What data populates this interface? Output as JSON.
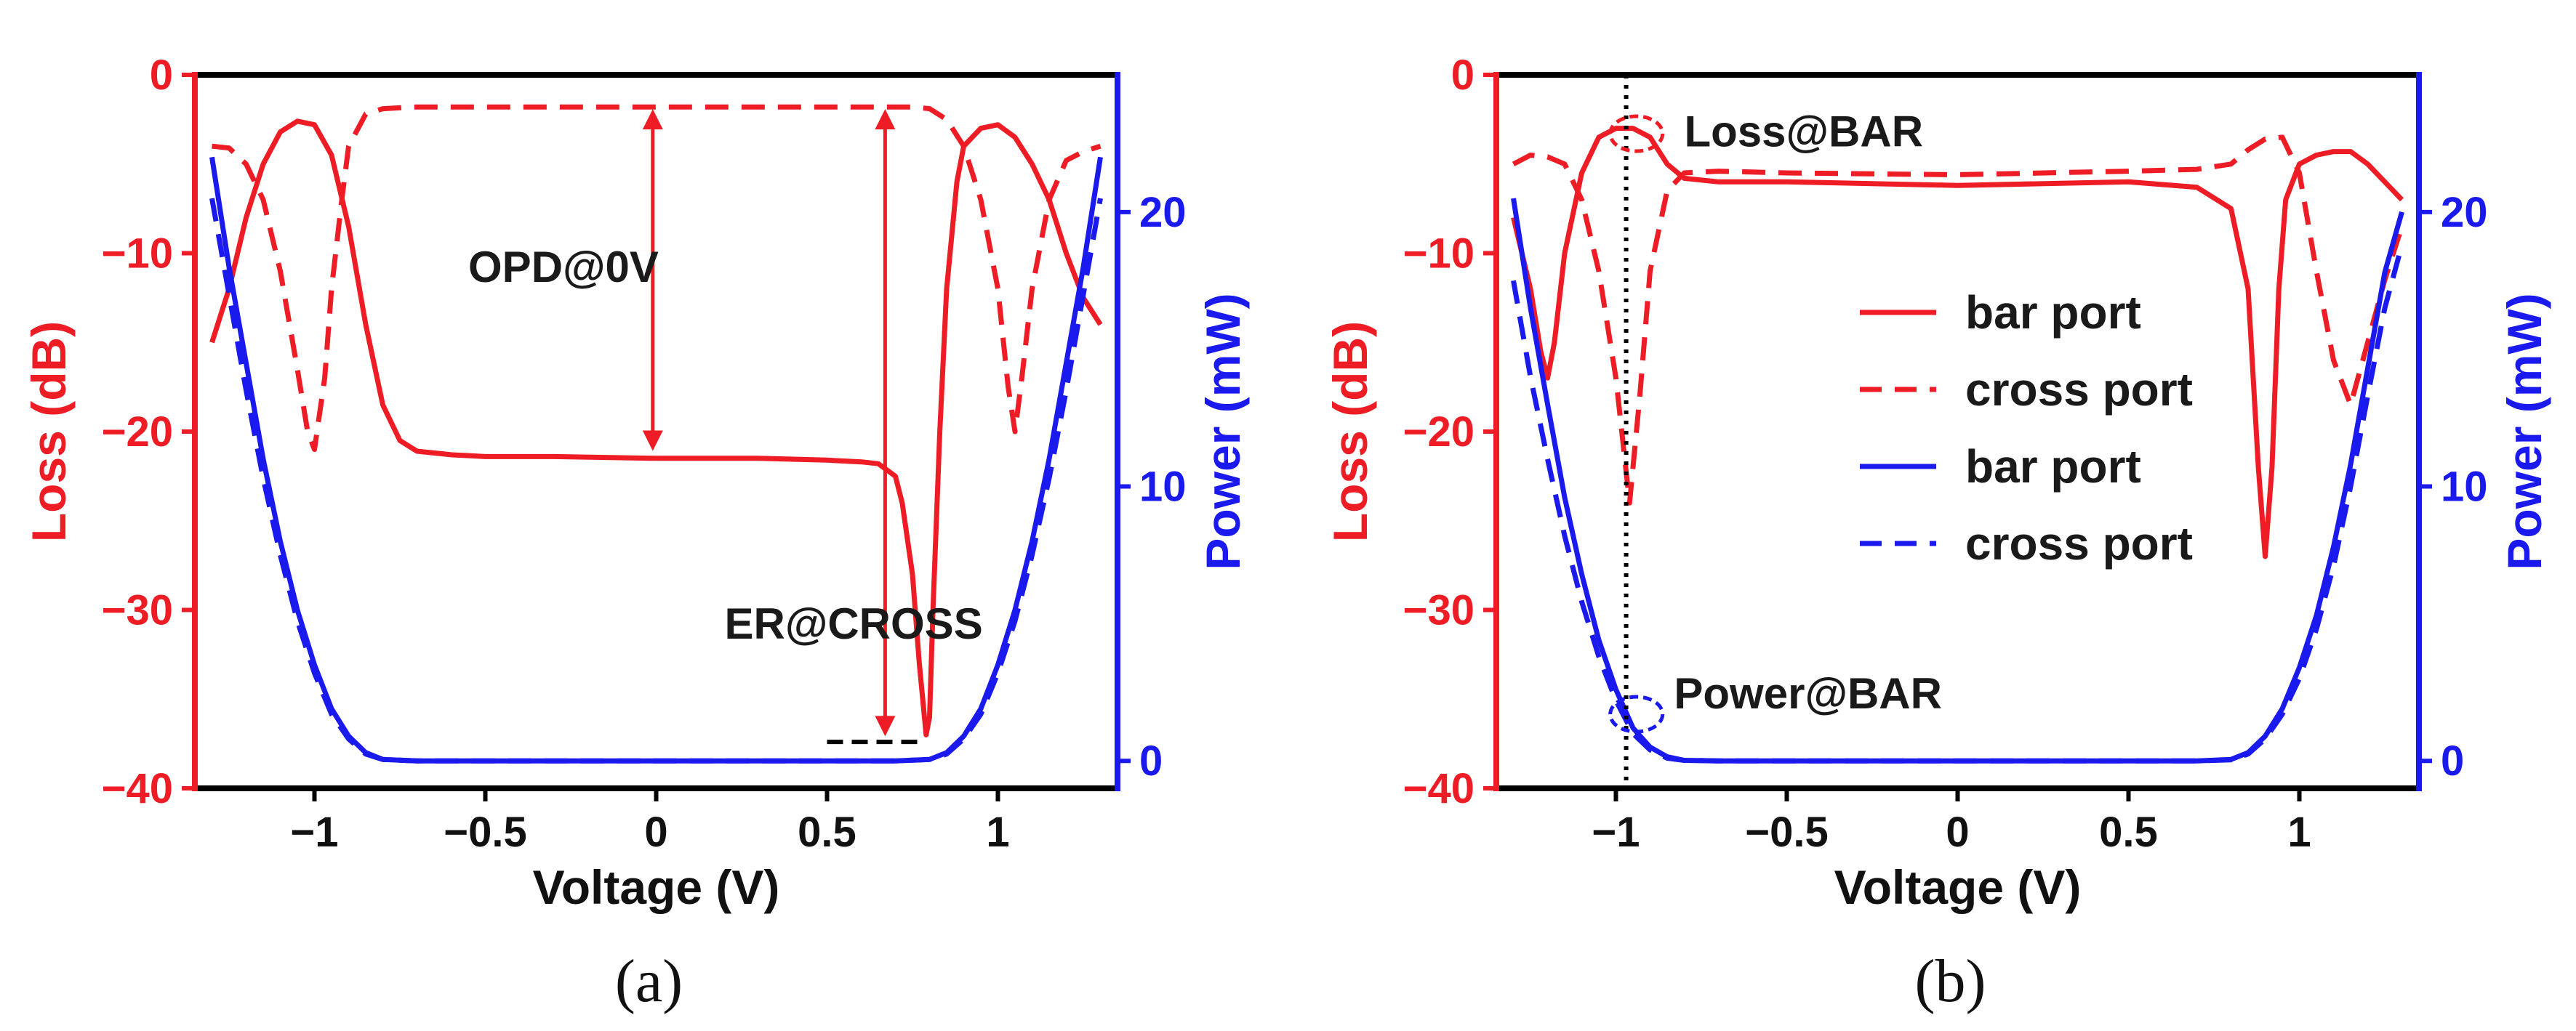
{
  "colors": {
    "red": "#ee1c25",
    "blue": "#1a1aee",
    "black": "#000000"
  },
  "chart_data": [
    {
      "type": "line",
      "caption": "(a)",
      "xlabel": "Voltage (V)",
      "ylabel_left": "Loss (dB)",
      "ylabel_right": "Power (mW)",
      "xlim": [
        -1.35,
        1.35
      ],
      "ylim_left": [
        -40,
        0
      ],
      "ylim_right": [
        -1,
        25
      ],
      "xticks": [
        -1,
        -0.5,
        0,
        0.5,
        1
      ],
      "xtick_labels": [
        "−1",
        "−0.5",
        "0",
        "0.5",
        "1"
      ],
      "yticks_left": [
        0,
        -10,
        -20,
        -30,
        -40
      ],
      "ytick_labels_left": [
        "0",
        "−10",
        "−20",
        "−30",
        "−40"
      ],
      "yticks_right": [
        0,
        10,
        20
      ],
      "ytick_labels_right": [
        "0",
        "10",
        "20"
      ],
      "series": [
        {
          "name": "bar port",
          "axis": "left",
          "color": "#ee1c25",
          "dash": "solid",
          "x": [
            -1.3,
            -1.25,
            -1.2,
            -1.15,
            -1.1,
            -1.05,
            -1.0,
            -0.95,
            -0.9,
            -0.85,
            -0.8,
            -0.75,
            -0.7,
            -0.6,
            -0.5,
            -0.3,
            0,
            0.3,
            0.5,
            0.6,
            0.65,
            0.7,
            0.72,
            0.75,
            0.77,
            0.79,
            0.8,
            0.81,
            0.83,
            0.85,
            0.88,
            0.9,
            0.95,
            1.0,
            1.05,
            1.1,
            1.15,
            1.2,
            1.25,
            1.3
          ],
          "y": [
            -15,
            -12,
            -8,
            -5,
            -3.2,
            -2.6,
            -2.8,
            -4.5,
            -8.5,
            -14,
            -18.5,
            -20.5,
            -21.1,
            -21.3,
            -21.4,
            -21.4,
            -21.5,
            -21.5,
            -21.6,
            -21.7,
            -21.8,
            -22.5,
            -24,
            -28,
            -33,
            -37,
            -36,
            -30,
            -20,
            -12,
            -6,
            -4,
            -3,
            -2.8,
            -3.5,
            -5,
            -7,
            -10,
            -12.5,
            -14
          ]
        },
        {
          "name": "cross port",
          "axis": "left",
          "color": "#ee1c25",
          "dash": "dashed",
          "x": [
            -1.3,
            -1.25,
            -1.2,
            -1.15,
            -1.1,
            -1.05,
            -1.02,
            -1.0,
            -0.97,
            -0.95,
            -0.92,
            -0.9,
            -0.85,
            -0.8,
            -0.7,
            0,
            0.7,
            0.75,
            0.8,
            0.85,
            0.9,
            0.95,
            1.0,
            1.03,
            1.05,
            1.07,
            1.1,
            1.15,
            1.2,
            1.25,
            1.3
          ],
          "y": [
            -4,
            -4.1,
            -5,
            -7,
            -11,
            -16.5,
            -20,
            -21,
            -17,
            -12,
            -7,
            -4,
            -2.2,
            -1.9,
            -1.8,
            -1.8,
            -1.8,
            -1.8,
            -1.9,
            -2.5,
            -4,
            -7,
            -12,
            -17.5,
            -20,
            -17,
            -12,
            -7,
            -4.8,
            -4.3,
            -4
          ]
        },
        {
          "name": "bar port",
          "axis": "right",
          "color": "#1a1aee",
          "dash": "solid",
          "x": [
            -1.3,
            -1.25,
            -1.2,
            -1.15,
            -1.1,
            -1.05,
            -1.0,
            -0.95,
            -0.9,
            -0.85,
            -0.8,
            -0.7,
            -0.5,
            0,
            0.5,
            0.7,
            0.8,
            0.85,
            0.9,
            0.95,
            1.0,
            1.05,
            1.1,
            1.15,
            1.2,
            1.25,
            1.3
          ],
          "y": [
            22,
            18,
            14.5,
            11,
            8,
            5.5,
            3.5,
            1.9,
            0.9,
            0.3,
            0.05,
            0,
            0,
            0,
            0,
            0,
            0.05,
            0.3,
            0.9,
            1.9,
            3.5,
            5.5,
            8,
            11,
            14.5,
            18,
            22
          ]
        },
        {
          "name": "cross port",
          "axis": "right",
          "color": "#1a1aee",
          "dash": "dashed",
          "x": [
            -1.3,
            -1.25,
            -1.2,
            -1.15,
            -1.1,
            -1.05,
            -1.0,
            -0.95,
            -0.9,
            -0.85,
            -0.8,
            -0.7,
            -0.5,
            0,
            0.5,
            0.7,
            0.8,
            0.85,
            0.9,
            0.95,
            1.0,
            1.05,
            1.1,
            1.15,
            1.2,
            1.25,
            1.3
          ],
          "y": [
            20.5,
            17,
            13.5,
            10.3,
            7.5,
            5.1,
            3.2,
            1.7,
            0.8,
            0.25,
            0.05,
            0,
            0,
            0,
            0,
            0,
            0.05,
            0.25,
            0.8,
            1.7,
            3.2,
            5.1,
            7.5,
            10.3,
            13.5,
            17,
            20.5
          ]
        }
      ],
      "annotations": [
        {
          "label": "OPD@0V",
          "x": -0.55,
          "y": -10.8
        },
        {
          "label": "ER@CROSS",
          "x": 0.2,
          "y": -30.8
        }
      ],
      "arrows": [
        {
          "x": -0.01,
          "y1": -2.0,
          "y2": -21.0
        },
        {
          "x": 0.67,
          "y1": -2.0,
          "y2": -37.0
        }
      ],
      "hline": {
        "x1": 0.5,
        "x2": 0.77,
        "y": -37.4
      }
    },
    {
      "type": "line",
      "caption": "(b)",
      "xlabel": "Voltage (V)",
      "ylabel_left": "Loss (dB)",
      "ylabel_right": "Power (mW)",
      "xlim": [
        -1.35,
        1.35
      ],
      "ylim_left": [
        -40,
        0
      ],
      "ylim_right": [
        -1,
        25
      ],
      "xticks": [
        -1,
        -0.5,
        0,
        0.5,
        1
      ],
      "xtick_labels": [
        "−1",
        "−0.5",
        "0",
        "0.5",
        "1"
      ],
      "yticks_left": [
        0,
        -10,
        -20,
        -30,
        -40
      ],
      "ytick_labels_left": [
        "0",
        "−10",
        "−20",
        "−30",
        "−40"
      ],
      "yticks_right": [
        0,
        10,
        20
      ],
      "ytick_labels_right": [
        "0",
        "10",
        "20"
      ],
      "series": [
        {
          "name": "bar port",
          "axis": "left",
          "color": "#ee1c25",
          "dash": "solid",
          "x": [
            -1.3,
            -1.25,
            -1.22,
            -1.2,
            -1.18,
            -1.15,
            -1.1,
            -1.05,
            -1.0,
            -0.95,
            -0.9,
            -0.85,
            -0.8,
            -0.7,
            -0.5,
            0,
            0.5,
            0.7,
            0.8,
            0.85,
            0.88,
            0.9,
            0.92,
            0.94,
            0.96,
            1.0,
            1.05,
            1.1,
            1.15,
            1.2,
            1.25,
            1.3
          ],
          "y": [
            -8,
            -12,
            -15.5,
            -17,
            -15,
            -10,
            -5.5,
            -3.5,
            -3.0,
            -3.0,
            -3.5,
            -5,
            -5.8,
            -6,
            -6,
            -6.2,
            -6,
            -6.3,
            -7.5,
            -12,
            -22,
            -27,
            -22,
            -12,
            -7,
            -5,
            -4.5,
            -4.3,
            -4.3,
            -5,
            -6,
            -7
          ]
        },
        {
          "name": "cross port",
          "axis": "left",
          "color": "#ee1c25",
          "dash": "dashed",
          "x": [
            -1.3,
            -1.25,
            -1.2,
            -1.15,
            -1.1,
            -1.05,
            -1.0,
            -0.96,
            -0.93,
            -0.9,
            -0.85,
            -0.8,
            -0.7,
            -0.5,
            0,
            0.5,
            0.7,
            0.8,
            0.85,
            0.9,
            0.95,
            1.0,
            1.05,
            1.1,
            1.15,
            1.2,
            1.25,
            1.3
          ],
          "y": [
            -5,
            -4.5,
            -4.6,
            -5,
            -7,
            -11,
            -17,
            -24,
            -18,
            -11,
            -6.5,
            -5.5,
            -5.4,
            -5.5,
            -5.6,
            -5.4,
            -5.3,
            -5,
            -4.2,
            -3.6,
            -3.5,
            -5.5,
            -11,
            -16,
            -18.5,
            -15,
            -11.5,
            -8.5
          ]
        },
        {
          "name": "bar port",
          "axis": "right",
          "color": "#1a1aee",
          "dash": "solid",
          "x": [
            -1.3,
            -1.25,
            -1.2,
            -1.15,
            -1.1,
            -1.05,
            -1.0,
            -0.95,
            -0.9,
            -0.85,
            -0.8,
            -0.7,
            -0.5,
            0,
            0.5,
            0.7,
            0.8,
            0.85,
            0.9,
            0.95,
            1.0,
            1.05,
            1.1,
            1.15,
            1.2,
            1.25,
            1.3
          ],
          "y": [
            20.5,
            16.5,
            13,
            9.6,
            6.8,
            4.4,
            2.6,
            1.2,
            0.5,
            0.15,
            0.02,
            0,
            0,
            0,
            0,
            0,
            0.05,
            0.3,
            0.9,
            1.9,
            3.4,
            5.3,
            7.8,
            10.8,
            14.3,
            17.8,
            20
          ]
        },
        {
          "name": "cross port",
          "axis": "right",
          "color": "#1a1aee",
          "dash": "dashed",
          "x": [
            -1.3,
            -1.25,
            -1.2,
            -1.15,
            -1.1,
            -1.05,
            -1.0,
            -0.95,
            -0.9,
            -0.85,
            -0.8,
            -0.7,
            -0.5,
            0,
            0.5,
            0.7,
            0.8,
            0.85,
            0.9,
            0.95,
            1.0,
            1.05,
            1.1,
            1.15,
            1.2,
            1.25,
            1.3
          ],
          "y": [
            17.5,
            14,
            11,
            8.2,
            5.8,
            3.8,
            2.2,
            1.0,
            0.4,
            0.1,
            0.02,
            0,
            0,
            0,
            0,
            0,
            0.04,
            0.25,
            0.8,
            1.7,
            3.0,
            4.8,
            7.1,
            10,
            13.3,
            16.5,
            18.8
          ]
        }
      ],
      "annotations": [
        {
          "label": "Loss@BAR",
          "x": -0.8,
          "y": -3.2
        },
        {
          "label": "Power@BAR",
          "x": -0.83,
          "y": -34.7
        }
      ],
      "vline": {
        "x": -0.97
      },
      "circles": [
        {
          "x": -0.94,
          "y": -3.3,
          "axis": "left",
          "color": "#ee1c25"
        },
        {
          "x": -0.94,
          "y": 1.7,
          "axis": "right",
          "color": "#1a1aee"
        }
      ],
      "legend": {
        "position": "center",
        "entries": [
          {
            "label": "bar port",
            "color": "#ee1c25",
            "dash": "solid"
          },
          {
            "label": "cross port",
            "color": "#ee1c25",
            "dash": "dashed"
          },
          {
            "label": "bar port",
            "color": "#1a1aee",
            "dash": "solid"
          },
          {
            "label": "cross port",
            "color": "#1a1aee",
            "dash": "dashed"
          }
        ]
      }
    }
  ]
}
